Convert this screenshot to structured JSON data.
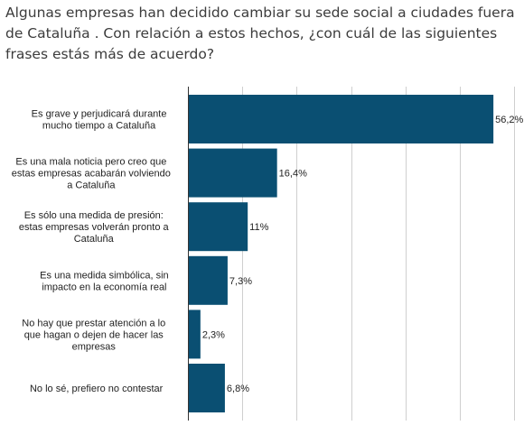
{
  "chart_data": {
    "type": "bar",
    "orientation": "horizontal",
    "title": "Algunas empresas han decidido cambiar su sede social a ciudades fuera de Cataluña . Con relación a estos hechos, ¿con cuál de las siguientes frases estás más de acuerdo?",
    "categories": [
      [
        "Es grave y perjudicará durante",
        "mucho tiempo a Cataluña"
      ],
      [
        "Es una mala noticia pero creo que",
        "estas empresas acabarán volviendo",
        "a Cataluña"
      ],
      [
        "Es sólo una medida de presión:",
        "estas empresas volverán pronto a",
        "Cataluña"
      ],
      [
        "Es una medida simbólica, sin",
        "impacto en la economía real"
      ],
      [
        "No hay que prestar atención a lo",
        "que hagan o dejen de hacer las",
        "empresas"
      ],
      [
        "No lo sé, prefiero no contestar"
      ]
    ],
    "values": [
      56.2,
      16.4,
      11,
      7.3,
      2.3,
      6.8
    ],
    "value_labels": [
      "56,2%",
      "16,4%",
      "11%",
      "7,3%",
      "2,3%",
      "6,8%"
    ],
    "xlim": [
      0,
      60
    ],
    "grid": true,
    "legend": "none",
    "bar_color": "#0a4f72"
  }
}
